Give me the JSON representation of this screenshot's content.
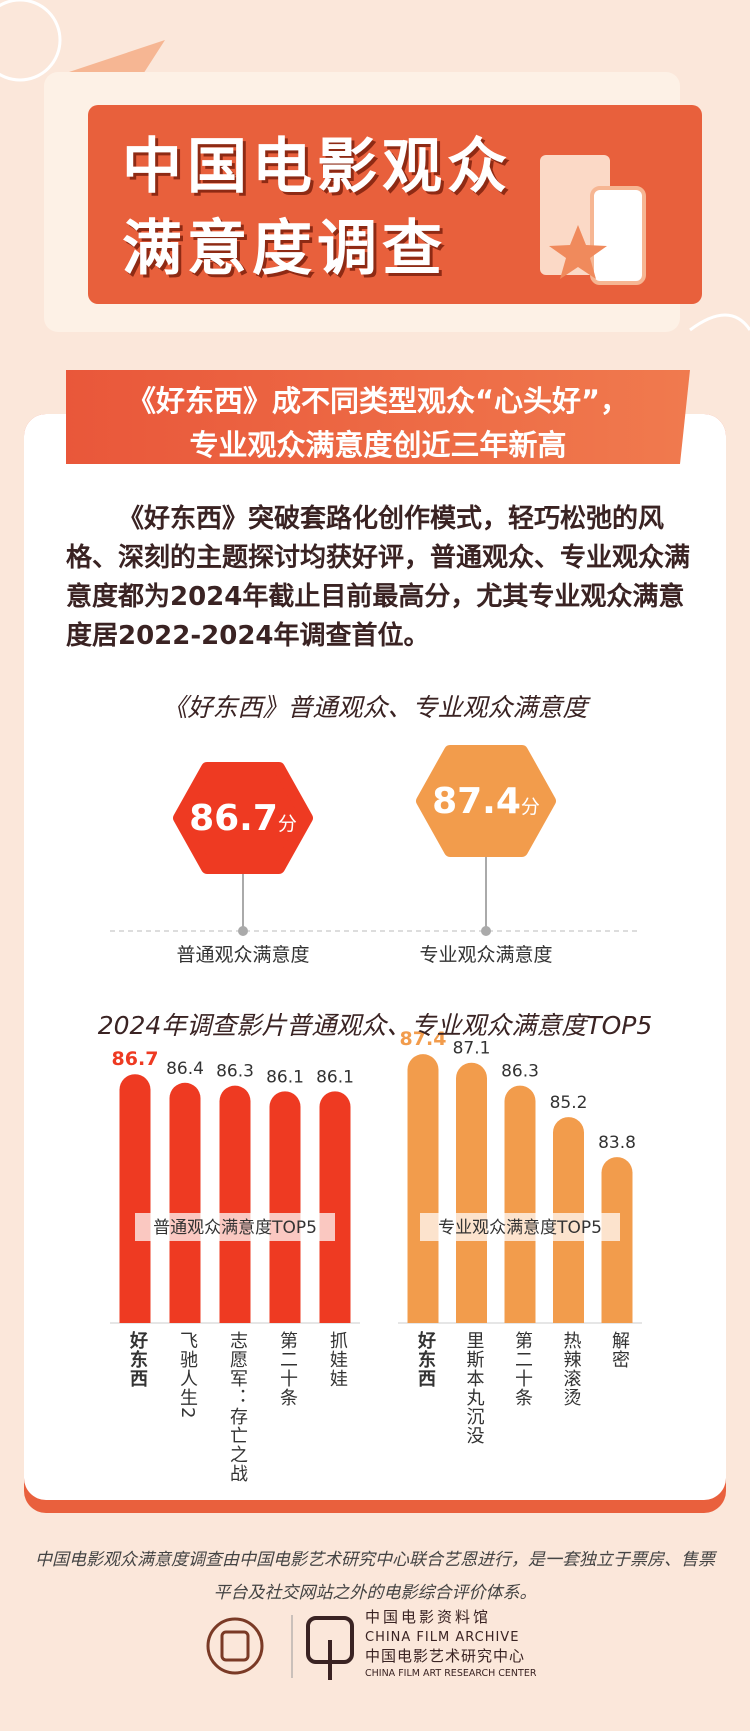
{
  "header": {
    "title": [
      "中国电影观众",
      "满意度调查"
    ]
  },
  "headline": [
    "《好东西》成不同类型观众“心头好”，",
    "专业观众满意度创近三年新高"
  ],
  "intro": "《好东西》突破套路化创作模式，轻巧松弛的风格、深刻的主题探讨均获好评，普通观众、专业观众满意度都为2024年截止目前最高分，尤其专业观众满意度居2022-2024年调查首位。",
  "section_title": "2024年调查影片普通观众、专业观众满意度TOP5",
  "chart_data": [
    {
      "type": "badge",
      "title": "《好东西》普通观众、专业观众满意度",
      "categories": [
        "普通观众满意度",
        "专业观众满意度"
      ],
      "values": [
        86.7,
        87.4
      ],
      "unit": "分",
      "colors": [
        "#ee3a22",
        "#f29c4c"
      ]
    },
    {
      "type": "bar",
      "label": "普通观众满意度TOP5",
      "categories": [
        "好东西",
        "飞驰人生2",
        "志愿军：存亡之战",
        "第二十条",
        "抓娃娃"
      ],
      "values": [
        86.7,
        86.4,
        86.3,
        86.1,
        86.1
      ],
      "color": "#ee3a22",
      "ylim": [
        78,
        88
      ]
    },
    {
      "type": "bar",
      "label": "专业观众满意度TOP5",
      "categories": [
        "好东西",
        "里斯本丸沉没",
        "第二十条",
        "热辣滚烫",
        "解密"
      ],
      "values": [
        87.4,
        87.1,
        86.3,
        85.2,
        83.8
      ],
      "color": "#f29c4c",
      "ylim": [
        78,
        88
      ]
    }
  ],
  "footer": {
    "note": "中国电影观众满意度调查由中国电影艺术研究中心联合艺恩进行，是一套独立于票房、售票平台及社交网站之外的电影综合评价体系。",
    "logos": [
      "中国电影资料馆",
      "CHINA FILM ARCHIVE",
      "中国电影艺术研究中心",
      "CHINA FILM ART RESEARCH CENTER"
    ]
  }
}
